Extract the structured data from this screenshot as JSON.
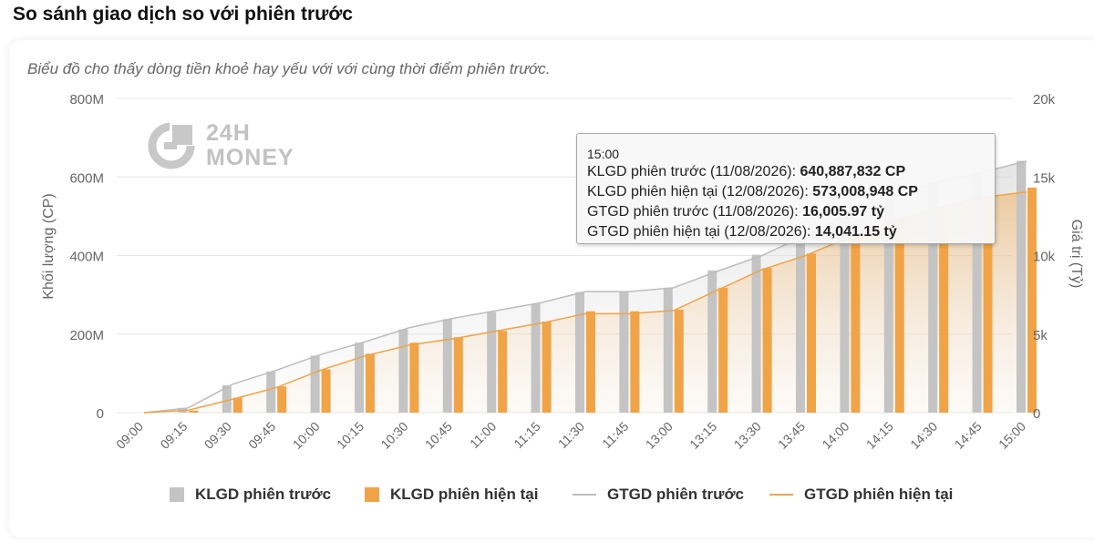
{
  "page_title": "So sánh giao dịch so với phiên trước",
  "subtitle": "Biểu đồ cho thấy dòng tiền khoẻ hay yếu với với cùng thời điểm phiên trước.",
  "watermark": {
    "line1": "24H",
    "line2": "MONEY"
  },
  "colors": {
    "prev_bar": "#c4c4c4",
    "curr_bar": "#f0a447",
    "prev_line": "#bdbdbd",
    "curr_line": "#f0a447",
    "grid": "#e6e6e6",
    "axis_text": "#666666"
  },
  "tooltip": {
    "time": "15:00",
    "rows": [
      {
        "label": "KLGD phiên trước (11/08/2026): ",
        "value": "640,887,832 CP"
      },
      {
        "label": "KLGD phiên hiện tại (12/08/2026): ",
        "value": "573,008,948 CP"
      },
      {
        "label": "GTGD phiên trước (11/08/2026): ",
        "value": "16,005.97 tỷ"
      },
      {
        "label": "GTGD phiên hiện tại (12/08/2026): ",
        "value": "14,041.15 tỷ"
      }
    ]
  },
  "chart_data": {
    "type": "bar",
    "categories": [
      "09:00",
      "09:15",
      "09:30",
      "09:45",
      "10:00",
      "10:15",
      "10:30",
      "10:45",
      "11:00",
      "11:15",
      "11:30",
      "11:45",
      "13:00",
      "13:15",
      "13:30",
      "13:45",
      "14:00",
      "14:15",
      "14:30",
      "14:45",
      "15:00"
    ],
    "ylabel_left": "Khối lượng (CP)",
    "ylabel_right": "Giá trị (Tỷ)",
    "y_left": {
      "min": 0,
      "max": 800000000,
      "ticks": [
        0,
        200000000,
        400000000,
        600000000,
        800000000
      ],
      "tick_labels": [
        "0",
        "200M",
        "400M",
        "600M",
        "800M"
      ]
    },
    "y_right": {
      "min": 0,
      "max": 20000,
      "ticks": [
        0,
        5000,
        10000,
        15000,
        20000
      ],
      "tick_labels": [
        "0",
        "5k",
        "10k",
        "15k",
        "20k"
      ]
    },
    "grid": true,
    "legend_position": "bottom-center",
    "series": [
      {
        "name": "KLGD phiên trước",
        "kind": "bar",
        "axis": "left",
        "values": [
          0,
          12000000,
          70000000,
          105000000,
          145000000,
          178000000,
          212000000,
          238000000,
          256000000,
          277000000,
          307000000,
          307000000,
          318000000,
          362000000,
          402000000,
          450000000,
          508000000,
          548000000,
          585000000,
          610000000,
          640887832
        ]
      },
      {
        "name": "KLGD phiên hiện tại",
        "kind": "bar",
        "axis": "left",
        "values": [
          0,
          5000000,
          38000000,
          67000000,
          110000000,
          150000000,
          178000000,
          192000000,
          208000000,
          232000000,
          258000000,
          258000000,
          262000000,
          318000000,
          368000000,
          405000000,
          450000000,
          490000000,
          520000000,
          548000000,
          573008948
        ]
      },
      {
        "name": "GTGD phiên trước",
        "kind": "line",
        "axis": "right",
        "values": [
          0,
          300,
          1800,
          2700,
          3700,
          4500,
          5400,
          6000,
          6500,
          7000,
          7700,
          7700,
          7950,
          9000,
          10000,
          11300,
          12700,
          13700,
          14700,
          15300,
          16005.97
        ]
      },
      {
        "name": "GTGD phiên hiện tại",
        "kind": "line",
        "axis": "right",
        "values": [
          0,
          150,
          850,
          1600,
          2700,
          3600,
          4300,
          4700,
          5200,
          5700,
          6300,
          6300,
          6500,
          7800,
          9100,
          10000,
          11200,
          12200,
          13000,
          13700,
          14041.15
        ]
      }
    ]
  }
}
